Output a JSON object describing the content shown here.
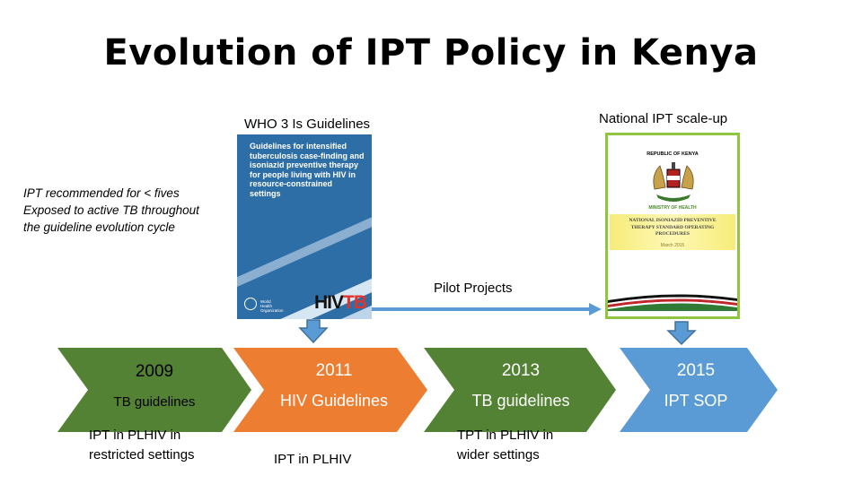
{
  "title": "Evolution of IPT Policy in Kenya",
  "labels": {
    "who": "WHO 3 Is Guidelines",
    "national": "National  IPT scale-up",
    "pilot": "Pilot  Projects"
  },
  "ipt_note": {
    "line1": "IPT recommended for < fives",
    "line2": "Exposed to active TB  throughout",
    "line3": "the guideline evolution  cycle"
  },
  "who_cover": {
    "text": "Guidelines for intensified tuberculosis case-finding and isoniazid preventive therapy for people living with HIV in resource-constrained settings",
    "logo_h": "H",
    "logo_iv": "IV",
    "logo_tb": "TB",
    "publisher": "World Health Organization"
  },
  "kenya_cover": {
    "republic": "REPUBLIC OF KENYA",
    "ministry": "MINISTRY OF HEALTH",
    "line1": "NATIONAL  ISONIAZID PREVENTIVE",
    "line2": "THERAPY STANDARD OPERATING",
    "line3": "PROCEDURES",
    "date": "March 2015"
  },
  "timeline": [
    {
      "year": "2009",
      "label": "TB guidelines",
      "below1": "IPT in  PLHIV in",
      "below2": "restricted settings",
      "color": "#548235"
    },
    {
      "year": "2011",
      "label": "HIV Guidelines",
      "below1": "IPT in PLHIV",
      "below2": "",
      "color": "#ed7d31"
    },
    {
      "year": "2013",
      "label": "TB guidelines",
      "below1": "TPT in PLHIV in",
      "below2": "wider settings",
      "color": "#548235"
    },
    {
      "year": "2015",
      "label": "IPT SOP",
      "below1": "",
      "below2": "",
      "color": "#5b9bd5"
    }
  ],
  "colors": {
    "arrow_blue": "#5b9bd5",
    "arrow_outline": "#41719c",
    "pilot_line": "#5b9bd5"
  }
}
